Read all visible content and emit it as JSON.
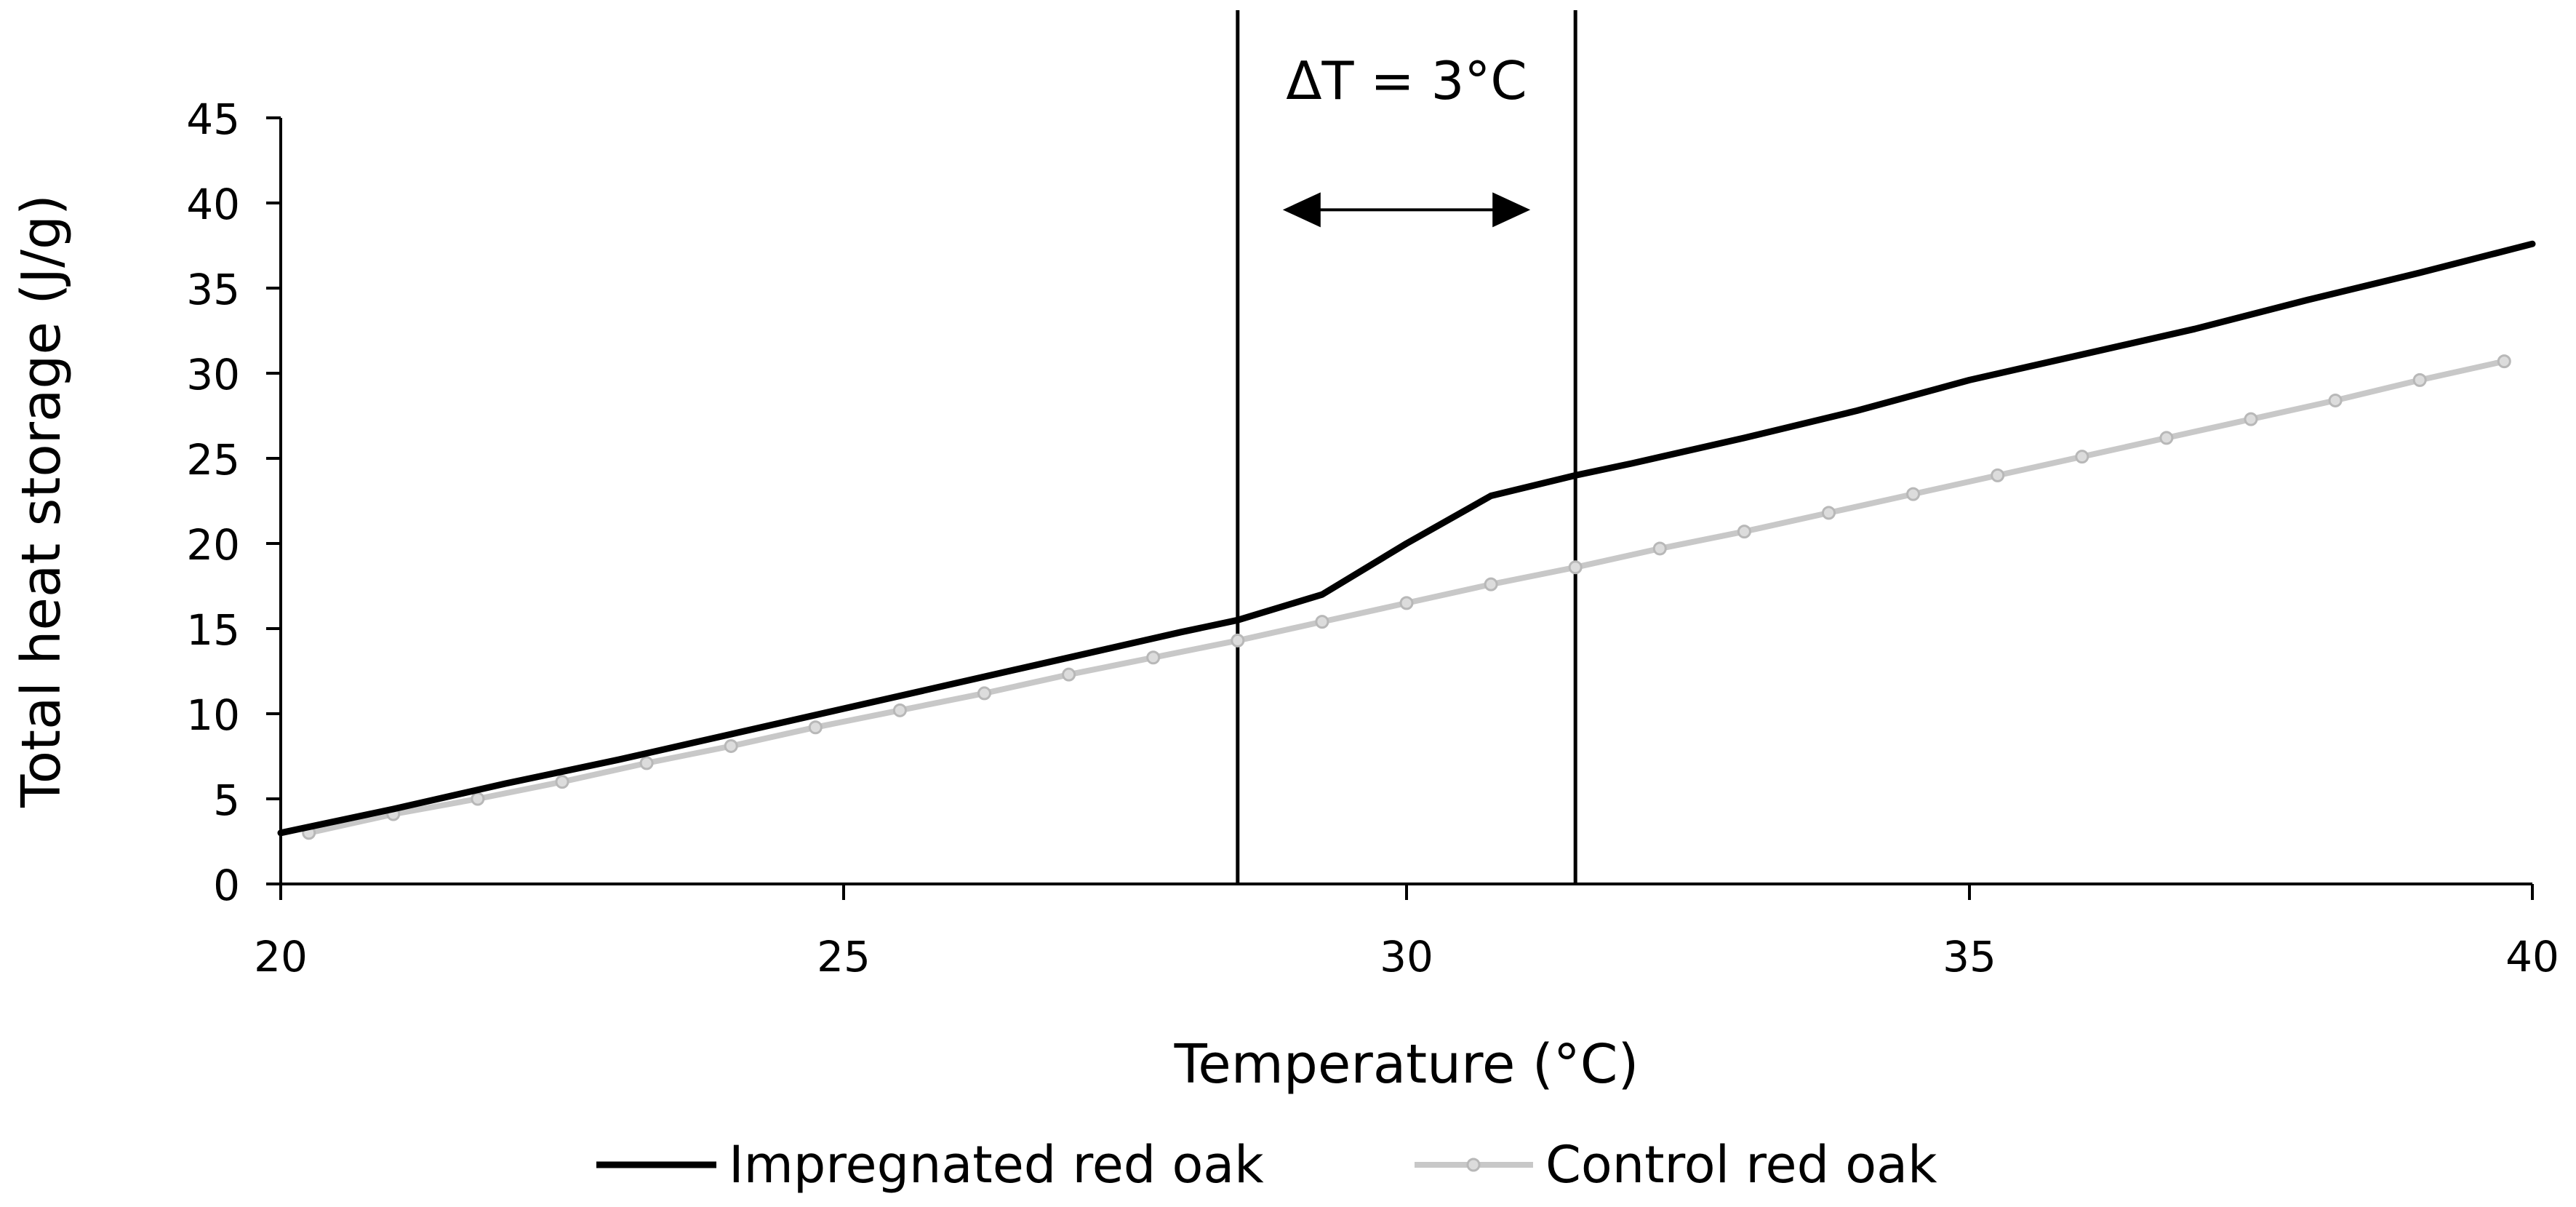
{
  "chart_data": {
    "type": "line",
    "title": "",
    "xlabel": "Temperature (°C)",
    "ylabel": "Total heat storage (J/g)",
    "xlim": [
      20,
      40
    ],
    "ylim": [
      0,
      45
    ],
    "x_ticks": [
      20,
      25,
      30,
      35,
      40
    ],
    "y_ticks": [
      0,
      5,
      10,
      15,
      20,
      25,
      30,
      35,
      40,
      45
    ],
    "grid": false,
    "legend_position": "bottom",
    "series": [
      {
        "name": "Impregnated red oak",
        "color": "#000000",
        "marker": "none",
        "x": [
          20.0,
          21.0,
          22.0,
          23.0,
          24.0,
          25.0,
          26.0,
          27.0,
          28.0,
          28.5,
          29.25,
          30.0,
          30.75,
          31.5,
          32.0,
          33.0,
          34.0,
          35.0,
          36.0,
          37.0,
          38.0,
          39.0,
          40.0
        ],
        "y": [
          3.0,
          4.4,
          5.9,
          7.3,
          8.8,
          10.3,
          11.8,
          13.3,
          14.8,
          15.5,
          17.0,
          20.0,
          22.8,
          24.0,
          24.7,
          26.2,
          27.8,
          29.6,
          31.1,
          32.6,
          34.3,
          35.9,
          37.6
        ]
      },
      {
        "name": "Control red oak",
        "color": "#c8c8c8",
        "marker": "circle",
        "x": [
          20.25,
          21.0,
          21.75,
          22.5,
          23.25,
          24.0,
          24.75,
          25.5,
          26.25,
          27.0,
          27.75,
          28.5,
          29.25,
          30.0,
          30.75,
          31.5,
          32.25,
          33.0,
          33.75,
          34.5,
          35.25,
          36.0,
          36.75,
          37.5,
          38.25,
          39.0,
          39.75
        ],
        "y": [
          3.0,
          4.1,
          5.0,
          6.0,
          7.1,
          8.1,
          9.2,
          10.2,
          11.2,
          12.3,
          13.3,
          14.3,
          15.4,
          16.5,
          17.6,
          18.6,
          19.7,
          20.7,
          21.8,
          22.9,
          24.0,
          25.1,
          26.2,
          27.3,
          28.4,
          29.6,
          30.7
        ]
      }
    ],
    "annotations": {
      "bounds": [
        28.5,
        31.5
      ],
      "label": "ΔT = 3°C",
      "arrow_y": 39.6
    }
  }
}
